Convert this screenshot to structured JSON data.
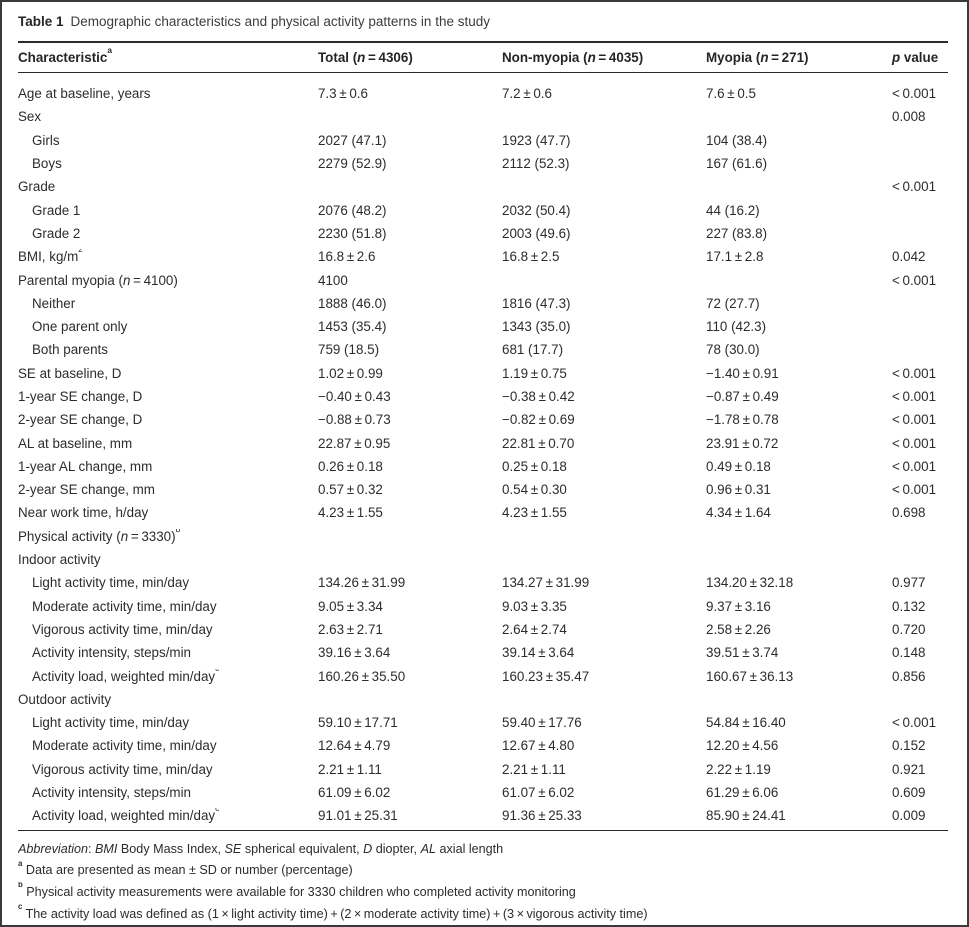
{
  "caption": {
    "label": "Table 1",
    "text": "Demographic characteristics and physical activity patterns in the study"
  },
  "table": {
    "columns": [
      {
        "id": "characteristic",
        "label": "Characteristic^a^"
      },
      {
        "id": "total",
        "label": "Total (*n* = 4306)"
      },
      {
        "id": "non_myopia",
        "label": "Non-myopia (*n* = 4035)"
      },
      {
        "id": "myopia",
        "label": "Myopia (*n* = 271)"
      },
      {
        "id": "p_value",
        "label": "*p* value"
      }
    ],
    "rows": [
      {
        "label": "Age at baseline, years",
        "indent": 0,
        "total": "7.3 ± 0.6",
        "non_myopia": "7.2 ± 0.6",
        "myopia": "7.6 ± 0.5",
        "p": "< 0.001"
      },
      {
        "label": "Sex",
        "indent": 0,
        "total": "",
        "non_myopia": "",
        "myopia": "",
        "p": "0.008"
      },
      {
        "label": "Girls",
        "indent": 1,
        "total": "2027 (47.1)",
        "non_myopia": "1923 (47.7)",
        "myopia": "104 (38.4)",
        "p": ""
      },
      {
        "label": "Boys",
        "indent": 1,
        "total": "2279 (52.9)",
        "non_myopia": "2112 (52.3)",
        "myopia": "167 (61.6)",
        "p": ""
      },
      {
        "label": "Grade",
        "indent": 0,
        "total": "",
        "non_myopia": "",
        "myopia": "",
        "p": "< 0.001"
      },
      {
        "label": "Grade 1",
        "indent": 1,
        "total": "2076 (48.2)",
        "non_myopia": "2032 (50.4)",
        "myopia": "44 (16.2)",
        "p": ""
      },
      {
        "label": "Grade 2",
        "indent": 1,
        "total": "2230 (51.8)",
        "non_myopia": "2003 (49.6)",
        "myopia": "227 (83.8)",
        "p": ""
      },
      {
        "label": "BMI, kg/m^2^",
        "indent": 0,
        "total": "16.8 ± 2.6",
        "non_myopia": "16.8 ± 2.5",
        "myopia": "17.1 ± 2.8",
        "p": "0.042"
      },
      {
        "label": "Parental myopia (*n* = 4100)",
        "indent": 0,
        "total": "4100",
        "non_myopia": "",
        "myopia": "",
        "p": "< 0.001"
      },
      {
        "label": "Neither",
        "indent": 1,
        "total": "1888 (46.0)",
        "non_myopia": "1816 (47.3)",
        "myopia": "72 (27.7)",
        "p": ""
      },
      {
        "label": "One parent only",
        "indent": 1,
        "total": "1453 (35.4)",
        "non_myopia": "1343 (35.0)",
        "myopia": "110 (42.3)",
        "p": ""
      },
      {
        "label": "Both parents",
        "indent": 1,
        "total": "759 (18.5)",
        "non_myopia": "681 (17.7)",
        "myopia": "78 (30.0)",
        "p": ""
      },
      {
        "label": "SE at baseline, D",
        "indent": 0,
        "total": "1.02 ± 0.99",
        "non_myopia": "1.19 ± 0.75",
        "myopia": "−1.40 ± 0.91",
        "p": "< 0.001"
      },
      {
        "label": "1-year SE change, D",
        "indent": 0,
        "total": "−0.40 ± 0.43",
        "non_myopia": "−0.38 ± 0.42",
        "myopia": "−0.87 ± 0.49",
        "p": "< 0.001"
      },
      {
        "label": "2-year SE change, D",
        "indent": 0,
        "total": "−0.88 ± 0.73",
        "non_myopia": "−0.82 ± 0.69",
        "myopia": "−1.78 ± 0.78",
        "p": "< 0.001"
      },
      {
        "label": "AL at baseline, mm",
        "indent": 0,
        "total": "22.87 ± 0.95",
        "non_myopia": "22.81 ± 0.70",
        "myopia": "23.91 ± 0.72",
        "p": "< 0.001"
      },
      {
        "label": "1-year AL change, mm",
        "indent": 0,
        "total": "0.26 ± 0.18",
        "non_myopia": "0.25 ± 0.18",
        "myopia": "0.49 ± 0.18",
        "p": "< 0.001"
      },
      {
        "label": "2-year SE change, mm",
        "indent": 0,
        "total": "0.57 ± 0.32",
        "non_myopia": "0.54 ± 0.30",
        "myopia": "0.96 ± 0.31",
        "p": "< 0.001"
      },
      {
        "label": "Near work time, h/day",
        "indent": 0,
        "total": "4.23 ± 1.55",
        "non_myopia": "4.23 ± 1.55",
        "myopia": "4.34 ± 1.64",
        "p": "0.698"
      },
      {
        "label": "Physical activity (*n* = 3330)^b^",
        "indent": 0,
        "total": "",
        "non_myopia": "",
        "myopia": "",
        "p": ""
      },
      {
        "label": "Indoor activity",
        "indent": 0,
        "total": "",
        "non_myopia": "",
        "myopia": "",
        "p": ""
      },
      {
        "label": "Light activity time, min/day",
        "indent": 1,
        "total": "134.26 ± 31.99",
        "non_myopia": "134.27 ± 31.99",
        "myopia": "134.20 ± 32.18",
        "p": "0.977"
      },
      {
        "label": "Moderate activity time, min/day",
        "indent": 1,
        "total": "9.05 ± 3.34",
        "non_myopia": "9.03 ± 3.35",
        "myopia": "9.37 ± 3.16",
        "p": "0.132"
      },
      {
        "label": "Vigorous activity time, min/day",
        "indent": 1,
        "total": "2.63 ± 2.71",
        "non_myopia": "2.64 ± 2.74",
        "myopia": "2.58 ± 2.26",
        "p": "0.720"
      },
      {
        "label": "Activity intensity, steps/min",
        "indent": 1,
        "total": "39.16 ± 3.64",
        "non_myopia": "39.14 ± 3.64",
        "myopia": "39.51 ± 3.74",
        "p": "0.148"
      },
      {
        "label": "Activity load, weighted min/day^c^",
        "indent": 1,
        "total": "160.26 ± 35.50",
        "non_myopia": "160.23 ± 35.47",
        "myopia": "160.67 ± 36.13",
        "p": "0.856"
      },
      {
        "label": "Outdoor activity",
        "indent": 0,
        "total": "",
        "non_myopia": "",
        "myopia": "",
        "p": ""
      },
      {
        "label": "Light activity time, min/day",
        "indent": 1,
        "total": "59.10 ± 17.71",
        "non_myopia": "59.40 ± 17.76",
        "myopia": "54.84 ± 16.40",
        "p": "< 0.001"
      },
      {
        "label": "Moderate activity time, min/day",
        "indent": 1,
        "total": "12.64 ± 4.79",
        "non_myopia": "12.67 ± 4.80",
        "myopia": "12.20 ± 4.56",
        "p": "0.152"
      },
      {
        "label": "Vigorous activity time, min/day",
        "indent": 1,
        "total": "2.21 ± 1.11",
        "non_myopia": "2.21 ± 1.11",
        "myopia": "2.22 ± 1.19",
        "p": "0.921"
      },
      {
        "label": "Activity intensity, steps/min",
        "indent": 1,
        "total": "61.09 ± 6.02",
        "non_myopia": "61.07 ± 6.02",
        "myopia": "61.29 ± 6.06",
        "p": "0.609"
      },
      {
        "label": "Activity load, weighted min/day^c^",
        "indent": 1,
        "total": "91.01 ± 25.31",
        "non_myopia": "91.36 ± 25.33",
        "myopia": "85.90 ± 24.41",
        "p": "0.009"
      }
    ]
  },
  "footnotes": [
    "*Abbreviation*: *BMI* Body Mass Index, *SE* spherical equivalent, *D* diopter, *AL* axial length",
    "^a^ Data are presented as mean ± SD or number (percentage)",
    "^b^ Physical activity measurements were available for 3330 children who completed activity monitoring",
    "^c^ The activity load was defined as (1 × light activity time) + (2 × moderate activity time) + (3 × vigorous activity time)"
  ]
}
